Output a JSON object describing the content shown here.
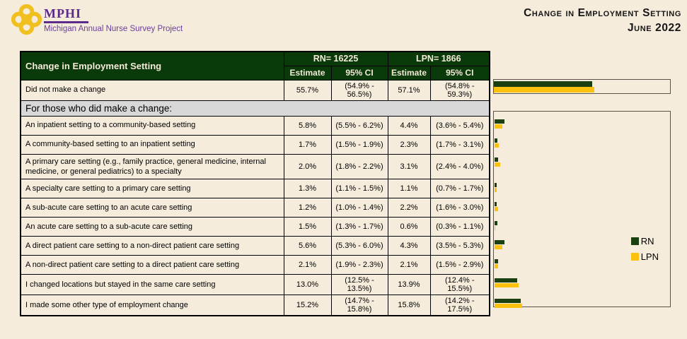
{
  "header": {
    "brand": {
      "acronym": "MPHI",
      "subtitle": "Michigan Annual Nurse Survey Project"
    },
    "title_line1": "Change in Employment Setting",
    "title_line2": "June 2022"
  },
  "colors": {
    "rn": "#1a3f10",
    "lpn": "#fcc10e",
    "table_header_green": "#0a3a0a",
    "section_gray": "#d8d8d8",
    "background_cream": "#f5ecdc",
    "brand_purple": "#5b2a8a"
  },
  "table": {
    "col_title": "Change in Employment Setting",
    "rn_group": "RN= 16225",
    "lpn_group": "LPN= 1866",
    "sub_headers": [
      "Estimate",
      "95% CI",
      "Estimate",
      "95% CI"
    ],
    "rows": [
      {
        "type": "data",
        "chart": "top",
        "label": "Did not make a change",
        "rn_est": "55.7%",
        "rn_ci": "(54.9% - 56.5%)",
        "lpn_est": "57.1%",
        "lpn_ci": "(54.8% - 59.3%)"
      },
      {
        "type": "section",
        "label": "For those who did make a change:"
      },
      {
        "type": "data",
        "chart": "main",
        "label": "An inpatient setting to a community-based setting",
        "rn_est": "5.8%",
        "rn_ci": "(5.5% - 6.2%)",
        "lpn_est": "4.4%",
        "lpn_ci": "(3.6% - 5.4%)"
      },
      {
        "type": "data",
        "chart": "main",
        "label": "A community-based setting to an inpatient setting",
        "rn_est": "1.7%",
        "rn_ci": "(1.5% - 1.9%)",
        "lpn_est": "2.3%",
        "lpn_ci": "(1.7% - 3.1%)"
      },
      {
        "type": "data",
        "chart": "main",
        "label": "A primary care setting (e.g., family practice, general medicine, internal medicine, or general pediatrics) to a specialty",
        "rn_est": "2.0%",
        "rn_ci": "(1.8% - 2.2%)",
        "lpn_est": "3.1%",
        "lpn_ci": "(2.4% - 4.0%)"
      },
      {
        "type": "data",
        "chart": "main",
        "label": "A specialty care setting to a primary care setting",
        "rn_est": "1.3%",
        "rn_ci": "(1.1% - 1.5%)",
        "lpn_est": "1.1%",
        "lpn_ci": "(0.7% - 1.7%)"
      },
      {
        "type": "data",
        "chart": "main",
        "label": "A sub-acute care setting to an acute care setting",
        "rn_est": "1.2%",
        "rn_ci": "(1.0% - 1.4%)",
        "lpn_est": "2.2%",
        "lpn_ci": "(1.6% - 3.0%)"
      },
      {
        "type": "data",
        "chart": "main",
        "label": "An acute care setting to a sub-acute care setting",
        "rn_est": "1.5%",
        "rn_ci": "(1.3% - 1.7%)",
        "lpn_est": "0.6%",
        "lpn_ci": "(0.3% - 1.1%)"
      },
      {
        "type": "data",
        "chart": "main",
        "label": "A direct patient care setting to a non-direct patient care setting",
        "rn_est": "5.6%",
        "rn_ci": "(5.3% - 6.0%)",
        "lpn_est": "4.3%",
        "lpn_ci": "(3.5% - 5.3%)"
      },
      {
        "type": "data",
        "chart": "main",
        "label": "A non-direct patient care setting to a direct patient care setting",
        "rn_est": "2.1%",
        "rn_ci": "(1.9% - 2.3%)",
        "lpn_est": "2.1%",
        "lpn_ci": "(1.5% - 2.9%)"
      },
      {
        "type": "data",
        "chart": "main",
        "label": "I changed locations but stayed in the same care setting",
        "rn_est": "13.0%",
        "rn_ci": "(12.5% - 13.5%)",
        "lpn_est": "13.9%",
        "lpn_ci": "(12.4% - 15.5%)"
      },
      {
        "type": "data",
        "chart": "main",
        "label": "I made some other type of employment change",
        "rn_est": "15.2%",
        "rn_ci": "(14.7% - 15.8%)",
        "lpn_est": "15.8%",
        "lpn_ci": "(14.2% - 17.5%)"
      }
    ]
  },
  "chart_data": {
    "type": "bar",
    "orientation": "horizontal",
    "title": "Change in Employment Setting - June 2022",
    "xlim": [
      0,
      100
    ],
    "grid": false,
    "legend_position": "right",
    "categories": [
      "Did not make a change",
      "An inpatient setting to a community-based setting",
      "A community-based setting to an inpatient setting",
      "A primary care setting (e.g., family practice, general medicine, internal medicine, or general pediatrics) to a specialty",
      "A specialty care setting to a primary care setting",
      "A sub-acute care setting to an acute care setting",
      "An acute care setting to a sub-acute care setting",
      "A direct patient care setting to a non-direct patient care setting",
      "A non-direct patient care setting to a direct patient care setting",
      "I changed locations but stayed in the same care setting",
      "I made some other type of employment change"
    ],
    "series": [
      {
        "name": "RN",
        "color": "#1a3f10",
        "values": [
          55.7,
          5.8,
          1.7,
          2.0,
          1.3,
          1.2,
          1.5,
          5.6,
          2.1,
          13.0,
          15.2
        ]
      },
      {
        "name": "LPN",
        "color": "#fcc10e",
        "values": [
          57.1,
          4.4,
          2.3,
          3.1,
          1.1,
          2.2,
          0.6,
          4.3,
          2.1,
          13.9,
          15.8
        ]
      }
    ]
  }
}
